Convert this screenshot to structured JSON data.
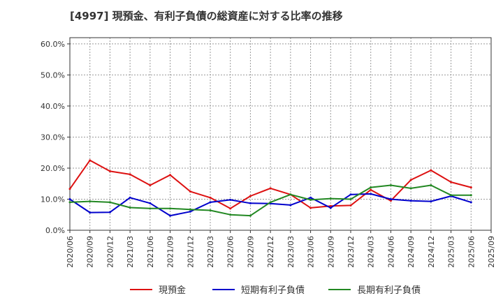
{
  "chart_data": {
    "type": "line",
    "title": "[4997]  現預金、有利子負債の総資産に対する比率の推移",
    "xlabel": "",
    "ylabel": "",
    "ylim": [
      0,
      62
    ],
    "yticks": [
      0,
      10,
      20,
      30,
      40,
      50,
      60
    ],
    "ytick_labels": [
      "0.0%",
      "10.0%",
      "20.0%",
      "30.0%",
      "40.0%",
      "50.0%",
      "60.0%"
    ],
    "xtick_labels": [
      "2020/06",
      "2020/09",
      "2020/12",
      "2021/03",
      "2021/06",
      "2021/09",
      "2021/12",
      "2022/03",
      "2022/06",
      "2022/09",
      "2022/12",
      "2023/03",
      "2023/06",
      "2023/09",
      "2023/12",
      "2024/03",
      "2024/06",
      "2024/09",
      "2024/12",
      "2025/03",
      "2025/06",
      "2025/09"
    ],
    "x": [
      "2020/06",
      "2020/09",
      "2020/12",
      "2021/03",
      "2021/06",
      "2021/09",
      "2021/12",
      "2022/03",
      "2022/06",
      "2022/09",
      "2022/12",
      "2023/03",
      "2023/06",
      "2023/09",
      "2023/12",
      "2024/03",
      "2024/06",
      "2024/09",
      "2024/12",
      "2025/03",
      "2025/06"
    ],
    "grid": true,
    "legend_position": "bottom",
    "series": [
      {
        "name": "現預金",
        "color": "#dd1111",
        "values": [
          13.3,
          22.5,
          19.0,
          18.0,
          14.5,
          17.8,
          12.5,
          10.5,
          7.0,
          11.0,
          13.5,
          11.5,
          7.2,
          7.8,
          8.0,
          13.0,
          9.5,
          16.2,
          19.3,
          15.5,
          13.8
        ]
      },
      {
        "name": "短期有利子負債",
        "color": "#0000cc",
        "values": [
          10.0,
          5.7,
          5.8,
          10.5,
          8.7,
          4.7,
          6.0,
          9.0,
          9.8,
          8.7,
          8.6,
          8.1,
          10.5,
          7.2,
          11.5,
          11.7,
          10.0,
          9.5,
          9.3,
          11.0,
          9.0
        ]
      },
      {
        "name": "長期有利子負債",
        "color": "#228822",
        "values": [
          9.0,
          9.3,
          9.0,
          7.3,
          7.0,
          7.0,
          6.7,
          6.4,
          5.0,
          4.7,
          9.0,
          11.5,
          9.8,
          10.2,
          10.0,
          13.8,
          14.5,
          13.5,
          14.5,
          11.3,
          11.3
        ]
      }
    ]
  }
}
